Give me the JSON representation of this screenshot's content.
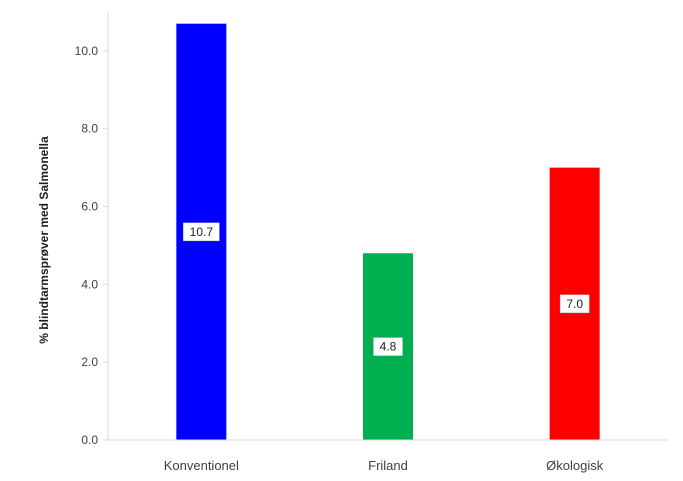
{
  "chart_data": {
    "type": "bar",
    "title": "",
    "xlabel": "",
    "ylabel": "% blindtarmsprøver med Salmonella",
    "ylim": [
      0,
      11
    ],
    "yticks": [
      "0.0",
      "2.0",
      "4.0",
      "6.0",
      "8.0",
      "10.0"
    ],
    "categories": [
      "Konventionel",
      "Friland",
      "Økologisk"
    ],
    "values": [
      10.7,
      4.8,
      7.0
    ],
    "data_labels": [
      "10.7",
      "4.8",
      "7.0"
    ],
    "colors": [
      "#0000ff",
      "#00b050",
      "#ff0000"
    ],
    "grid": false,
    "legend": "none"
  }
}
